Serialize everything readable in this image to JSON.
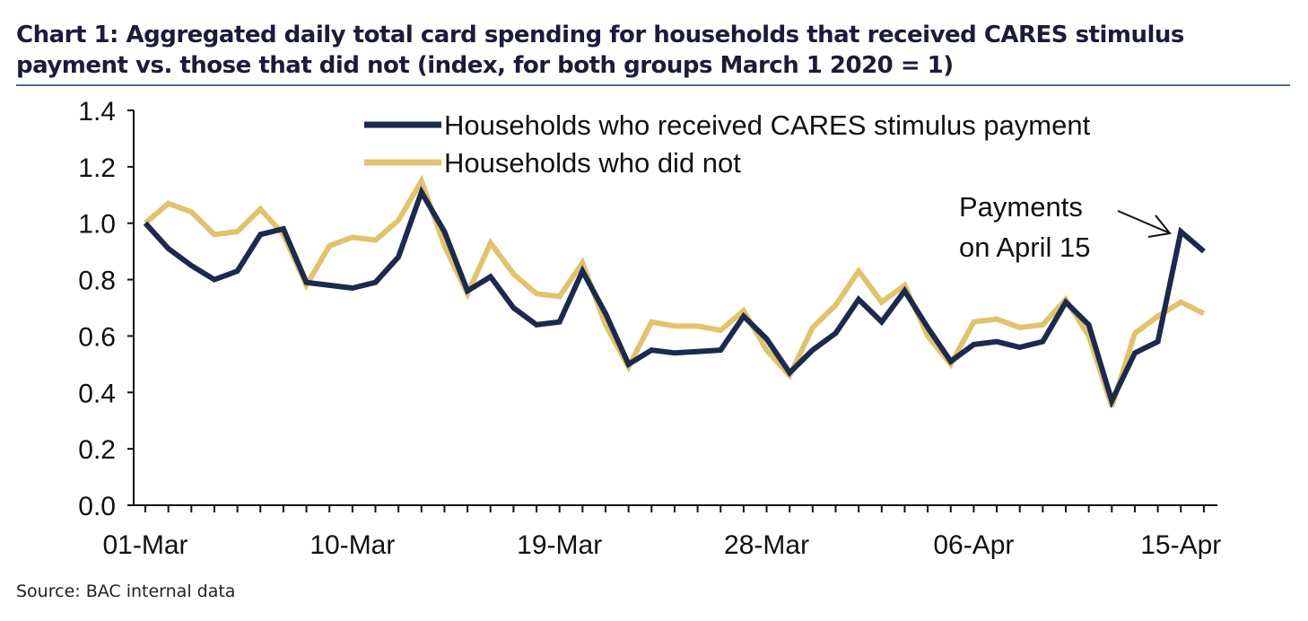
{
  "title": "Chart 1: Aggregated daily total card spending for households that received CARES stimulus payment vs. those that did not (index, for both groups March 1 2020 = 1)",
  "source": "Source: BAC internal data",
  "colors": {
    "received": "#1b2a4e",
    "did_not": "#e1c36e",
    "axis": "#111111"
  },
  "chart_data": {
    "type": "line",
    "ylim": [
      0,
      1.4
    ],
    "yticks": [
      "0.0",
      "0.2",
      "0.4",
      "0.6",
      "0.8",
      "1.0",
      "1.2",
      "1.4"
    ],
    "ytick_values": [
      0,
      0.2,
      0.4,
      0.6,
      0.8,
      1.0,
      1.2,
      1.4
    ],
    "x": [
      "01-Mar",
      "02-Mar",
      "03-Mar",
      "04-Mar",
      "05-Mar",
      "06-Mar",
      "07-Mar",
      "08-Mar",
      "09-Mar",
      "10-Mar",
      "11-Mar",
      "12-Mar",
      "13-Mar",
      "14-Mar",
      "15-Mar",
      "16-Mar",
      "17-Mar",
      "18-Mar",
      "19-Mar",
      "20-Mar",
      "21-Mar",
      "22-Mar",
      "23-Mar",
      "24-Mar",
      "25-Mar",
      "26-Mar",
      "27-Mar",
      "28-Mar",
      "29-Mar",
      "30-Mar",
      "31-Mar",
      "01-Apr",
      "02-Apr",
      "03-Apr",
      "04-Apr",
      "05-Apr",
      "06-Apr",
      "07-Apr",
      "08-Apr",
      "09-Apr",
      "10-Apr",
      "11-Apr",
      "12-Apr",
      "13-Apr",
      "14-Apr",
      "15-Apr",
      "16-Apr"
    ],
    "xtick_labels": [
      "01-Mar",
      "10-Mar",
      "19-Mar",
      "28-Mar",
      "06-Apr",
      "15-Apr"
    ],
    "series": [
      {
        "name": "Households who received CARES stimulus payment",
        "values": [
          1.0,
          0.91,
          0.85,
          0.8,
          0.83,
          0.96,
          0.98,
          0.79,
          0.78,
          0.77,
          0.79,
          0.88,
          1.11,
          0.97,
          0.76,
          0.81,
          0.7,
          0.64,
          0.65,
          0.83,
          0.68,
          0.5,
          0.55,
          0.54,
          0.545,
          0.55,
          0.67,
          0.59,
          0.47,
          0.55,
          0.61,
          0.73,
          0.65,
          0.76,
          0.63,
          0.51,
          0.57,
          0.58,
          0.56,
          0.58,
          0.72,
          0.64,
          0.37,
          0.54,
          0.58,
          0.97,
          0.9
        ]
      },
      {
        "name": "Households who did not",
        "values": [
          1.0,
          1.07,
          1.04,
          0.96,
          0.97,
          1.05,
          0.96,
          0.78,
          0.92,
          0.95,
          0.94,
          1.01,
          1.15,
          0.92,
          0.75,
          0.93,
          0.82,
          0.75,
          0.74,
          0.86,
          0.64,
          0.49,
          0.65,
          0.635,
          0.635,
          0.62,
          0.69,
          0.55,
          0.46,
          0.63,
          0.71,
          0.83,
          0.72,
          0.78,
          0.6,
          0.5,
          0.65,
          0.66,
          0.63,
          0.64,
          0.73,
          0.6,
          0.35,
          0.61,
          0.67,
          0.72,
          0.68
        ]
      }
    ],
    "annotation": {
      "line1": "Payments",
      "line2": "on April 15"
    }
  }
}
